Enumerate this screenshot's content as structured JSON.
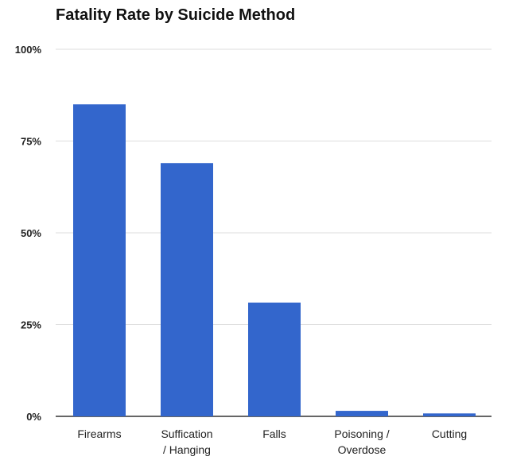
{
  "chart_data": {
    "type": "bar",
    "title": "Fatality Rate by Suicide Method",
    "categories": [
      [
        "Firearms"
      ],
      [
        "Suffication",
        "/ Hanging"
      ],
      [
        "Falls"
      ],
      [
        "Poisoning /",
        "Overdose"
      ],
      [
        "Cutting"
      ]
    ],
    "values": [
      85,
      69,
      31,
      1.5,
      0.8
    ],
    "ylim": [
      0,
      100
    ],
    "yticks": [
      "0%",
      "25%",
      "50%",
      "75%",
      "100%"
    ],
    "ytick_values": [
      0,
      25,
      50,
      75,
      100
    ],
    "grid": true,
    "colors": {
      "bar": "#3366CC",
      "grid": "#dddddd",
      "baseline": "#333333"
    }
  }
}
